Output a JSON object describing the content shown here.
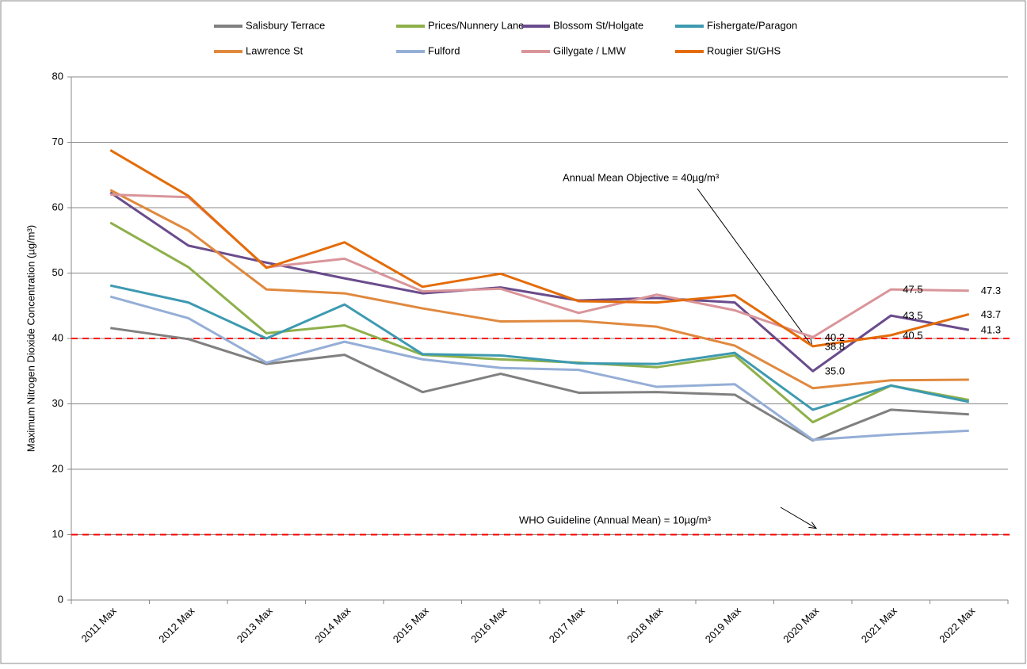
{
  "chart_data": {
    "type": "line",
    "y_label": "Maximum Nitrogen Dioxide Concentration (µg/m³)",
    "categories": [
      "2011 Max",
      "2012 Max",
      "2013 Max",
      "2014 Max",
      "2015 Max",
      "2016 Max",
      "2017 Max",
      "2018 Max",
      "2019 Max",
      "2020 Max",
      "2021 Max",
      "2022 Max"
    ],
    "series": [
      {
        "name": "Salisbury Terrace",
        "color": "#808080",
        "values": [
          41.6,
          39.9,
          36.1,
          37.5,
          31.8,
          34.6,
          31.7,
          31.8,
          31.4,
          24.4,
          29.1,
          28.4
        ]
      },
      {
        "name": "Prices/Nunnery Lane",
        "color": "#8db04a",
        "values": [
          57.7,
          50.9,
          40.8,
          42.0,
          37.5,
          36.8,
          36.3,
          35.6,
          37.4,
          27.2,
          32.8,
          30.6
        ]
      },
      {
        "name": "Blossom St/Holgate",
        "color": "#6a4c8c",
        "values": [
          62.3,
          54.2,
          51.6,
          49.2,
          46.9,
          47.8,
          45.8,
          46.2,
          45.5,
          35.0,
          43.5,
          41.3
        ],
        "value_labels": [
          null,
          null,
          null,
          null,
          null,
          null,
          null,
          null,
          null,
          "35.0",
          "43.5",
          "41.3"
        ]
      },
      {
        "name": "Fishergate/Paragon",
        "color": "#3d9ab0",
        "values": [
          48.1,
          45.5,
          40.0,
          45.2,
          37.6,
          37.4,
          36.2,
          36.1,
          37.8,
          29.1,
          32.8,
          30.3
        ]
      },
      {
        "name": "Lawrence St",
        "color": "#e0893e",
        "values": [
          62.7,
          56.5,
          47.5,
          46.9,
          44.6,
          42.6,
          42.7,
          41.8,
          38.9,
          32.4,
          33.6,
          33.7
        ]
      },
      {
        "name": "Fulford",
        "color": "#95aed6",
        "values": [
          46.4,
          43.1,
          36.3,
          39.5,
          36.8,
          35.5,
          35.2,
          32.6,
          33.0,
          24.5,
          25.3,
          25.9
        ]
      },
      {
        "name": "Gillygate / LMW",
        "color": "#d9959a",
        "values": [
          62.0,
          61.6,
          50.9,
          52.2,
          47.2,
          47.6,
          43.9,
          46.7,
          44.3,
          40.2,
          47.5,
          47.3
        ],
        "value_labels": [
          null,
          null,
          null,
          null,
          null,
          null,
          null,
          null,
          null,
          "40.2",
          "47.5",
          "47.3"
        ]
      },
      {
        "name": "Rougier St/GHS",
        "color": "#e46c0a",
        "values": [
          68.8,
          61.8,
          50.8,
          54.7,
          47.9,
          49.9,
          45.7,
          45.5,
          46.6,
          38.8,
          40.5,
          43.7
        ],
        "value_labels": [
          null,
          null,
          null,
          null,
          null,
          null,
          null,
          null,
          null,
          "38.8",
          "40.5",
          "43.7"
        ]
      }
    ],
    "ylim": [
      0,
      80
    ],
    "yticks": [
      0,
      10,
      20,
      30,
      40,
      50,
      60,
      70,
      80
    ],
    "grid": true,
    "reference_lines": [
      {
        "value": 40,
        "color": "#ff0000",
        "annotation": "Annual Mean Objective = 40µg/m³"
      },
      {
        "value": 10,
        "color": "#ff0000",
        "annotation": "WHO Guideline (Annual Mean) = 10µg/m³"
      }
    ]
  }
}
